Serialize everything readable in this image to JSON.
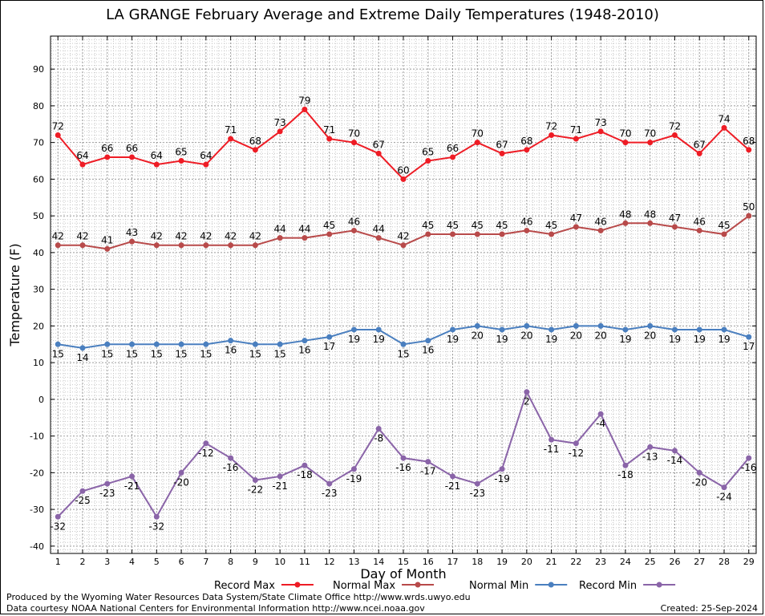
{
  "chart_data": {
    "type": "line",
    "title": "LA GRANGE February Average and Extreme Daily Temperatures (1948-2010)",
    "xlabel": "Day of Month",
    "ylabel": "Temperature (F)",
    "x": [
      1,
      2,
      3,
      4,
      5,
      6,
      7,
      8,
      9,
      10,
      11,
      12,
      13,
      14,
      15,
      16,
      17,
      18,
      19,
      20,
      21,
      22,
      23,
      24,
      25,
      26,
      27,
      28,
      29
    ],
    "xlim": [
      0.7,
      29.3
    ],
    "ylim": [
      -42,
      99
    ],
    "yticks": [
      -40,
      -30,
      -20,
      -10,
      0,
      10,
      20,
      30,
      40,
      50,
      60,
      70,
      80,
      90
    ],
    "grid": true,
    "legend_position": "bottom",
    "series": [
      {
        "name": "Record Max",
        "color": "#ee1c25",
        "values": [
          72,
          64,
          66,
          66,
          64,
          65,
          64,
          71,
          68,
          73,
          79,
          71,
          70,
          67,
          60,
          65,
          66,
          70,
          67,
          68,
          72,
          71,
          73,
          70,
          70,
          72,
          67,
          74,
          68
        ],
        "label_position": "above"
      },
      {
        "name": "Normal Max",
        "color": "#b84a4a",
        "values": [
          42,
          42,
          41,
          43,
          42,
          42,
          42,
          42,
          42,
          44,
          44,
          45,
          46,
          44,
          42,
          45,
          45,
          45,
          45,
          46,
          45,
          47,
          46,
          48,
          48,
          47,
          46,
          45,
          50
        ],
        "label_position": "above"
      },
      {
        "name": "Normal Min",
        "color": "#4a7fbf",
        "values": [
          15,
          14,
          15,
          15,
          15,
          15,
          15,
          16,
          15,
          15,
          16,
          17,
          19,
          19,
          15,
          16,
          19,
          20,
          19,
          20,
          19,
          20,
          20,
          19,
          20,
          19,
          19,
          19,
          17
        ],
        "label_position": "below"
      },
      {
        "name": "Record Min",
        "color": "#8a64a8",
        "values": [
          -32,
          -25,
          -23,
          -21,
          -32,
          -20,
          -12,
          -16,
          -22,
          -21,
          -18,
          -23,
          -19,
          -8,
          -16,
          -17,
          -21,
          -23,
          -19,
          2,
          -11,
          -12,
          -4,
          -18,
          -13,
          -14,
          -20,
          -24,
          -16
        ],
        "label_position": "below"
      }
    ]
  },
  "footer": {
    "produced_by": "Produced by the Wyoming Water Resources Data System/State Climate Office http://www.wrds.uwyo.edu",
    "courtesy": "Data courtesy NOAA National Centers for Environmental Information http://www.ncei.noaa.gov",
    "created": "Created:  25-Sep-2024"
  }
}
